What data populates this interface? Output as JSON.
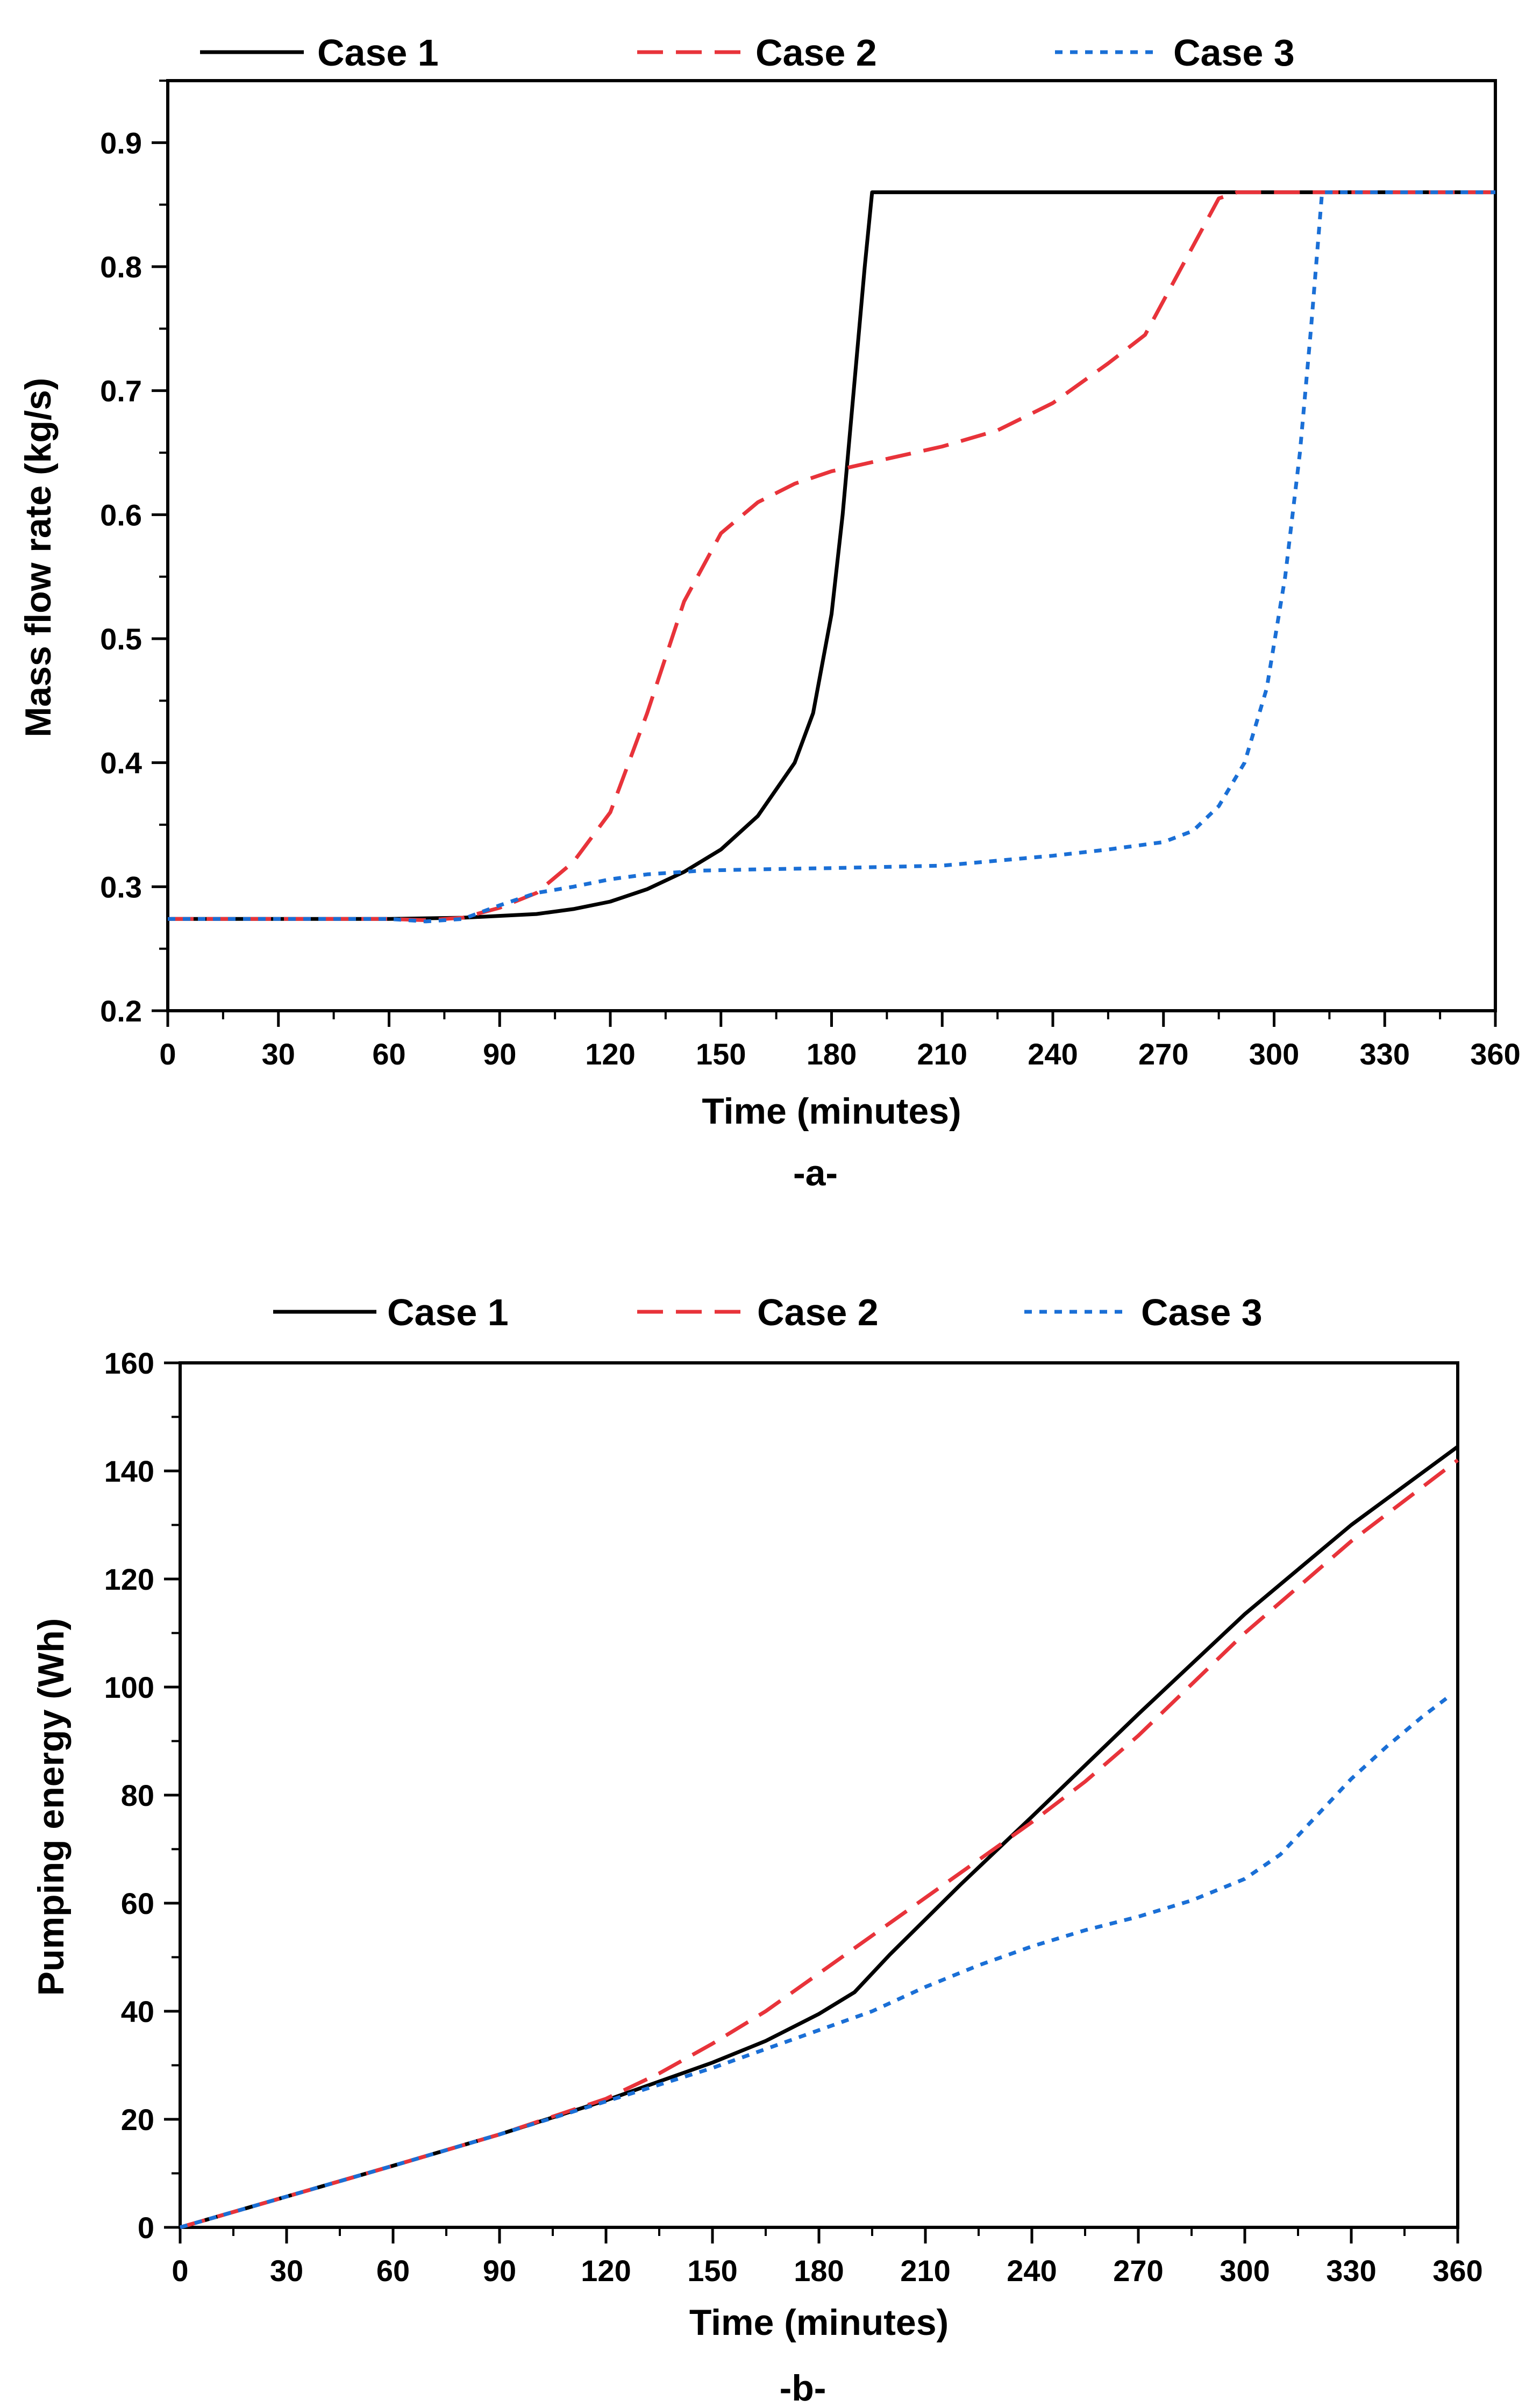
{
  "chart_data": [
    {
      "type": "line",
      "caption": "-a-",
      "xlabel": "Time (minutes)",
      "ylabel": "Mass flow rate (kg/s)",
      "xlim": [
        0,
        360
      ],
      "ylim": [
        0.2,
        0.95
      ],
      "xticks": [
        "0",
        "30",
        "60",
        "90",
        "120",
        "150",
        "180",
        "210",
        "240",
        "270",
        "300",
        "330",
        "360"
      ],
      "yticks": [
        "0.2",
        "0.3",
        "0.4",
        "0.5",
        "0.6",
        "0.7",
        "0.8",
        "0.9"
      ],
      "legend_position": "top",
      "series": [
        {
          "name": "Case 1",
          "color": "#000000",
          "style": "solid",
          "points": [
            [
              0,
              0.274
            ],
            [
              60,
              0.274
            ],
            [
              80,
              0.275
            ],
            [
              100,
              0.278
            ],
            [
              110,
              0.282
            ],
            [
              120,
              0.288
            ],
            [
              130,
              0.298
            ],
            [
              140,
              0.312
            ],
            [
              150,
              0.33
            ],
            [
              160,
              0.357
            ],
            [
              170,
              0.4
            ],
            [
              175,
              0.44
            ],
            [
              180,
              0.52
            ],
            [
              183,
              0.6
            ],
            [
              186,
              0.7
            ],
            [
              189,
              0.8
            ],
            [
              191,
              0.86
            ],
            [
              360,
              0.86
            ]
          ]
        },
        {
          "name": "Case 2",
          "color": "#e8333a",
          "style": "dashed",
          "points": [
            [
              0,
              0.274
            ],
            [
              60,
              0.274
            ],
            [
              70,
              0.273
            ],
            [
              80,
              0.275
            ],
            [
              90,
              0.283
            ],
            [
              100,
              0.295
            ],
            [
              110,
              0.32
            ],
            [
              120,
              0.36
            ],
            [
              130,
              0.44
            ],
            [
              140,
              0.53
            ],
            [
              150,
              0.585
            ],
            [
              160,
              0.61
            ],
            [
              170,
              0.625
            ],
            [
              180,
              0.635
            ],
            [
              195,
              0.645
            ],
            [
              210,
              0.655
            ],
            [
              225,
              0.668
            ],
            [
              240,
              0.69
            ],
            [
              255,
              0.722
            ],
            [
              265,
              0.745
            ],
            [
              275,
              0.8
            ],
            [
              285,
              0.855
            ],
            [
              290,
              0.86
            ],
            [
              360,
              0.86
            ]
          ]
        },
        {
          "name": "Case 3",
          "color": "#1a6fd6",
          "style": "dotted",
          "points": [
            [
              0,
              0.274
            ],
            [
              60,
              0.274
            ],
            [
              70,
              0.272
            ],
            [
              80,
              0.274
            ],
            [
              90,
              0.285
            ],
            [
              100,
              0.295
            ],
            [
              110,
              0.3
            ],
            [
              120,
              0.306
            ],
            [
              130,
              0.31
            ],
            [
              145,
              0.313
            ],
            [
              160,
              0.314
            ],
            [
              180,
              0.315
            ],
            [
              210,
              0.317
            ],
            [
              240,
              0.325
            ],
            [
              255,
              0.33
            ],
            [
              270,
              0.336
            ],
            [
              278,
              0.345
            ],
            [
              285,
              0.365
            ],
            [
              292,
              0.4
            ],
            [
              298,
              0.46
            ],
            [
              303,
              0.55
            ],
            [
              307,
              0.65
            ],
            [
              310,
              0.75
            ],
            [
              313,
              0.86
            ],
            [
              360,
              0.86
            ]
          ]
        }
      ]
    },
    {
      "type": "line",
      "caption": "-b-",
      "xlabel": "Time (minutes)",
      "ylabel": "Pumping energy (Wh)",
      "xlim": [
        0,
        360
      ],
      "ylim": [
        0,
        160
      ],
      "xticks": [
        "0",
        "30",
        "60",
        "90",
        "120",
        "150",
        "180",
        "210",
        "240",
        "270",
        "300",
        "330",
        "360"
      ],
      "yticks": [
        "0",
        "20",
        "40",
        "60",
        "80",
        "100",
        "120",
        "140",
        "160"
      ],
      "legend_position": "top",
      "series": [
        {
          "name": "Case 1",
          "color": "#000000",
          "style": "solid",
          "points": [
            [
              0,
              0
            ],
            [
              30,
              5.7
            ],
            [
              60,
              11.4
            ],
            [
              90,
              17.2
            ],
            [
              120,
              23.5
            ],
            [
              150,
              30.5
            ],
            [
              165,
              34.5
            ],
            [
              180,
              39.5
            ],
            [
              190,
              43.5
            ],
            [
              200,
              50.5
            ],
            [
              220,
              63.5
            ],
            [
              240,
              76
            ],
            [
              270,
              95
            ],
            [
              300,
              113.5
            ],
            [
              330,
              130
            ],
            [
              360,
              144.5
            ]
          ]
        },
        {
          "name": "Case 2",
          "color": "#e8333a",
          "style": "dashed",
          "points": [
            [
              0,
              0
            ],
            [
              30,
              5.7
            ],
            [
              60,
              11.4
            ],
            [
              90,
              17.2
            ],
            [
              120,
              23.8
            ],
            [
              135,
              28.5
            ],
            [
              150,
              34
            ],
            [
              165,
              40
            ],
            [
              180,
              47
            ],
            [
              195,
              54
            ],
            [
              210,
              61
            ],
            [
              225,
              68
            ],
            [
              240,
              75
            ],
            [
              255,
              82.5
            ],
            [
              270,
              91
            ],
            [
              300,
              110
            ],
            [
              330,
              127
            ],
            [
              360,
              142
            ]
          ]
        },
        {
          "name": "Case 3",
          "color": "#1a6fd6",
          "style": "dotted",
          "points": [
            [
              0,
              0
            ],
            [
              30,
              5.7
            ],
            [
              60,
              11.4
            ],
            [
              90,
              17.2
            ],
            [
              120,
              23.3
            ],
            [
              150,
              29.5
            ],
            [
              165,
              33
            ],
            [
              180,
              36.5
            ],
            [
              195,
              40
            ],
            [
              210,
              44.5
            ],
            [
              225,
              48.5
            ],
            [
              240,
              52
            ],
            [
              255,
              55
            ],
            [
              270,
              57.5
            ],
            [
              285,
              60.5
            ],
            [
              300,
              64.5
            ],
            [
              310,
              69
            ],
            [
              320,
              76
            ],
            [
              330,
              83
            ],
            [
              340,
              89
            ],
            [
              350,
              94.5
            ],
            [
              357,
              98
            ]
          ]
        }
      ]
    }
  ]
}
